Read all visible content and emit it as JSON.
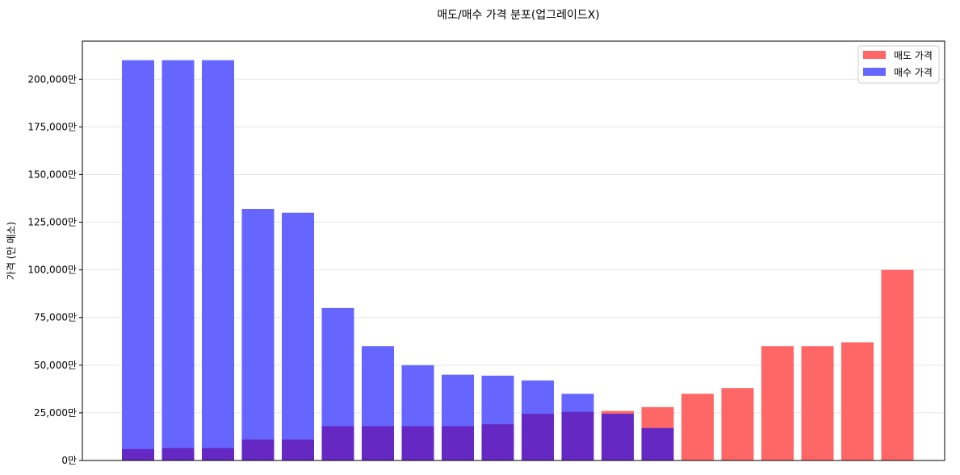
{
  "chart_data": {
    "type": "bar",
    "title": "매도/매수 가격 분포(업그레이드X)",
    "xlabel": "",
    "ylabel": "가격 (만 메소)",
    "ylim": [
      0,
      220000
    ],
    "yticks": [
      0,
      25000,
      50000,
      75000,
      100000,
      125000,
      150000,
      175000,
      200000
    ],
    "ytick_labels": [
      "0만",
      "25,000만",
      "50,000만",
      "75,000만",
      "100,000만",
      "125,000만",
      "150,000만",
      "175,000만",
      "200,000만"
    ],
    "grid": true,
    "legend_position": "top-right",
    "categories_count": 20,
    "overlay": true,
    "series": [
      {
        "name": "매도 가격",
        "color": "#ff6666",
        "values": [
          6000,
          6500,
          6500,
          11000,
          11000,
          18000,
          18000,
          18000,
          18000,
          19000,
          24500,
          25500,
          26000,
          28000,
          35000,
          38000,
          60000,
          60000,
          62000,
          100000
        ]
      },
      {
        "name": "매수 가격",
        "color": "#6666ff",
        "values": [
          210000,
          210000,
          210000,
          132000,
          130000,
          80000,
          60000,
          50000,
          45000,
          44500,
          42000,
          35000,
          24500,
          17000,
          null,
          null,
          null,
          null,
          null,
          null
        ]
      }
    ],
    "overlap_color": "#6528c2"
  }
}
